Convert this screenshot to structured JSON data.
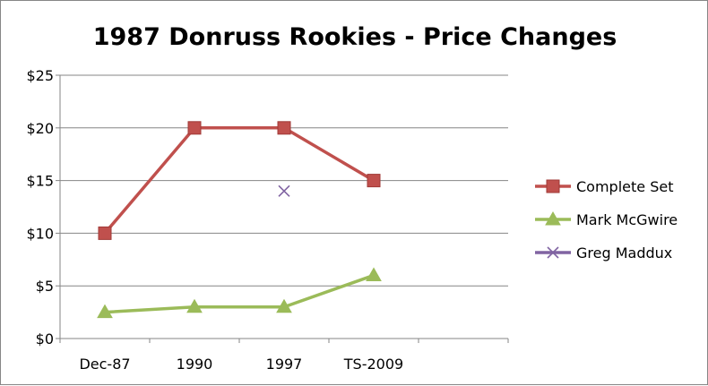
{
  "chart_data": {
    "type": "line",
    "title": "1987 Donruss Rookies - Price Changes",
    "xlabel": "",
    "ylabel": "",
    "categories": [
      "Dec-87",
      "1990",
      "1997",
      "TS-2009",
      ""
    ],
    "ylim": [
      0,
      25
    ],
    "yticks": [
      0,
      5,
      10,
      15,
      20,
      25
    ],
    "ytick_labels": [
      "$0",
      "$5",
      "$10",
      "$15",
      "$20",
      "$25"
    ],
    "grid": true,
    "legend_position": "right",
    "series": [
      {
        "name": "Complete Set",
        "values": [
          10,
          20,
          20,
          15,
          null
        ],
        "color": "#C0504D",
        "marker": "square",
        "line": true
      },
      {
        "name": "Mark McGwire",
        "values": [
          2.5,
          3,
          3,
          6,
          null
        ],
        "color": "#9BBB59",
        "marker": "triangle",
        "line": true
      },
      {
        "name": "Greg Maddux",
        "values": [
          null,
          null,
          14,
          null,
          null
        ],
        "color": "#8064A2",
        "marker": "x",
        "line": false
      }
    ]
  }
}
